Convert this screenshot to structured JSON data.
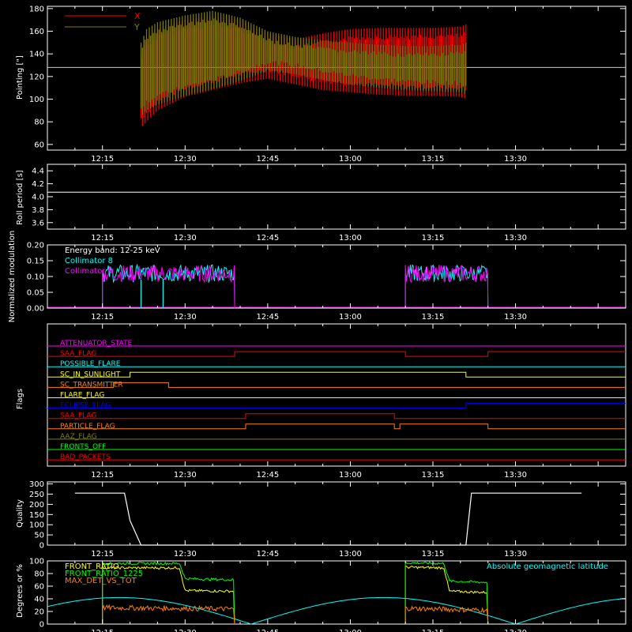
{
  "colors": {
    "background": "#000000",
    "axis": "#ffffff",
    "x_pointing": "#ff0000",
    "y_pointing": "#808000",
    "collimator_8": "#00ffff",
    "collimator_9": "#ff00ff",
    "front_ratio": "#ffff00",
    "front_ratio_1225": "#00ff00",
    "max_det_vs_tot": "#ff8000",
    "geomagnetic_latitude": "#00ffff"
  },
  "chart_data": [
    {
      "type": "line",
      "id": "pointing",
      "ylabel": "Pointing [\"]",
      "ylim": [
        55,
        182
      ],
      "yticks": [
        60,
        80,
        100,
        120,
        140,
        160,
        180
      ],
      "xticks": [
        "12:15",
        "12:30",
        "12:45",
        "13:00",
        "13:15",
        "13:30"
      ],
      "xlim_minutes": [
        725,
        830
      ],
      "reference_line": 128,
      "legend": [
        {
          "name": "X",
          "color": "#ff0000"
        },
        {
          "name": "Y",
          "color": "#808000"
        }
      ],
      "series": [
        {
          "name": "X",
          "color": "#ff0000",
          "x": [
            "12:22",
            "12:23",
            "12:25",
            "12:30",
            "12:35",
            "12:40",
            "12:45",
            "12:50",
            "12:55",
            "13:00",
            "13:05",
            "13:10",
            "13:15",
            "13:20",
            "13:21"
          ],
          "upper": [
            140,
            155,
            163,
            170,
            173,
            170,
            158,
            153,
            158,
            162,
            163,
            163,
            163,
            164,
            166
          ],
          "lower": [
            75,
            80,
            90,
            102,
            108,
            114,
            118,
            113,
            108,
            106,
            104,
            103,
            103,
            102,
            100
          ]
        },
        {
          "name": "Y",
          "color": "#808000",
          "x": [
            "12:22",
            "12:23",
            "12:25",
            "12:30",
            "12:35",
            "12:40",
            "12:45",
            "12:50",
            "12:55",
            "13:00",
            "13:05",
            "13:10",
            "13:15",
            "13:20",
            "13:21"
          ],
          "upper": [
            150,
            162,
            168,
            174,
            178,
            172,
            160,
            155,
            152,
            150,
            148,
            147,
            147,
            148,
            150
          ],
          "lower": [
            85,
            90,
            95,
            103,
            109,
            116,
            125,
            122,
            117,
            113,
            110,
            108,
            107,
            106,
            104
          ]
        }
      ]
    },
    {
      "type": "line",
      "id": "roll",
      "ylabel": "Roll period [s]",
      "ylim": [
        3.5,
        4.5
      ],
      "yticks": [
        "3.6",
        "3.8",
        "4.0",
        "4.2",
        "4.4"
      ],
      "xticks": [
        "12:15",
        "12:30",
        "12:45",
        "13:00",
        "13:15",
        "13:30"
      ],
      "series": [
        {
          "name": "Roll period",
          "color": "#ffffff",
          "value": 4.07
        }
      ]
    },
    {
      "type": "line",
      "id": "modulation",
      "ylabel": "Normalized modulation",
      "ylim": [
        0,
        0.2
      ],
      "yticks": [
        "0.00",
        "0.05",
        "0.10",
        "0.15",
        "0.20"
      ],
      "xticks": [
        "12:15",
        "12:30",
        "12:45",
        "13:00",
        "13:15",
        "13:30"
      ],
      "annotation": "Energy band: 12-25 keV",
      "legend": [
        {
          "name": "Collimator 8",
          "color": "#00ffff"
        },
        {
          "name": "Collimator 9",
          "color": "#ff00ff"
        }
      ],
      "segments": [
        {
          "start": "12:15",
          "end": "12:39",
          "mean": 0.11
        },
        {
          "start": "13:10",
          "end": "13:25",
          "mean": 0.11
        }
      ],
      "gaps": [
        "12:22",
        "12:26"
      ]
    },
    {
      "type": "line",
      "id": "flags",
      "ylabel": "Flags",
      "xticks": [
        "12:15",
        "12:30",
        "12:45",
        "13:00",
        "13:15",
        "13:30"
      ],
      "flags": [
        {
          "name": "ATTENUATOR_STATE",
          "color": "#ff00ff",
          "steps": []
        },
        {
          "name": "SAA_FLAG",
          "color": "#ff0000",
          "steps": [
            {
              "t": "12:39",
              "on": true
            },
            {
              "t": "13:10",
              "on": false
            },
            {
              "t": "13:25",
              "on": true
            }
          ]
        },
        {
          "name": "POSSIBLE_FLARE",
          "color": "#00ffff",
          "steps": []
        },
        {
          "name": "SC_IN_SUNLIGHT",
          "color": "#ffff00",
          "steps": [
            {
              "t": "12:20",
              "on": true
            },
            {
              "t": "13:21",
              "on": false
            }
          ]
        },
        {
          "name": "SC_TRANSMITTER",
          "color": "#ff8000",
          "steps": [
            {
              "t": "12:17",
              "on": true
            },
            {
              "t": "12:27",
              "on": false
            }
          ]
        },
        {
          "name": "FLARE_FLAG",
          "color": "#ffff00",
          "steps": []
        },
        {
          "name": "ECLIPSE_FLAG",
          "color": "#0000ff",
          "steps": [
            {
              "t": "12:20",
              "on": false
            },
            {
              "t": "13:21",
              "on": true
            }
          ]
        },
        {
          "name": "SAA_FLAG",
          "color": "#ff0000",
          "steps": [
            {
              "t": "12:41",
              "on": true
            },
            {
              "t": "13:08",
              "on": false
            }
          ]
        },
        {
          "name": "PARTICLE_FLAG",
          "color": "#ff8000",
          "steps": [
            {
              "t": "12:39",
              "on": false
            },
            {
              "t": "12:41",
              "on": true
            },
            {
              "t": "13:08",
              "on": false
            },
            {
              "t": "13:09",
              "on": true
            },
            {
              "t": "13:25",
              "on": false
            }
          ]
        },
        {
          "name": "AAZ_FLAG",
          "color": "#808000",
          "steps": []
        },
        {
          "name": "FRONTS_OFF",
          "color": "#00ff00",
          "steps": []
        },
        {
          "name": "BAD_PACKETS",
          "color": "#ff0000",
          "steps": []
        }
      ]
    },
    {
      "type": "line",
      "id": "quality",
      "ylabel": "Quality",
      "ylim": [
        0,
        310
      ],
      "yticks": [
        0,
        50,
        100,
        150,
        200,
        250,
        300
      ],
      "xticks": [
        "12:15",
        "12:30",
        "12:45",
        "13:00",
        "13:15",
        "13:30"
      ],
      "series": [
        {
          "name": "Quality",
          "color": "#ffffff",
          "x": [
            "12:10",
            "12:19",
            "12:20",
            "12:22",
            "13:21",
            "13:22",
            "13:42"
          ],
          "y": [
            255,
            255,
            120,
            0,
            0,
            255,
            255
          ]
        }
      ]
    },
    {
      "type": "line",
      "id": "ratios",
      "ylabel": "Degrees or %",
      "ylim": [
        0,
        100
      ],
      "yticks": [
        0,
        20,
        40,
        60,
        80,
        100
      ],
      "xticks": [
        "12:15",
        "12:30",
        "12:45",
        "13:00",
        "13:15",
        "13:30"
      ],
      "legend": [
        {
          "name": "FRONT_RATIO",
          "color": "#ffff00"
        },
        {
          "name": "FRONT_RATIO_1225",
          "color": "#00ff00"
        },
        {
          "name": "MAX_DET_VS_TOT",
          "color": "#ff8000"
        }
      ],
      "annotation": "Absolute geomagnetic latitude",
      "series": [
        {
          "name": "FRONT_RATIO",
          "color": "#ffff00",
          "x": [
            "12:15",
            "12:29",
            "12:30",
            "12:39",
            "13:10",
            "13:17",
            "13:18",
            "13:25"
          ],
          "y": [
            89,
            89,
            53,
            52,
            90,
            89,
            52,
            50
          ]
        },
        {
          "name": "FRONT_RATIO_1225",
          "color": "#00ff00",
          "x": [
            "12:15",
            "12:29",
            "12:30",
            "12:39",
            "13:10",
            "13:17",
            "13:18",
            "13:25"
          ],
          "y": [
            96,
            96,
            72,
            70,
            97,
            96,
            68,
            66
          ]
        },
        {
          "name": "MAX_DET_VS_TOT",
          "color": "#ff8000",
          "x": [
            "12:15",
            "12:39",
            "13:10",
            "13:25"
          ],
          "y": [
            26,
            24,
            25,
            22
          ]
        },
        {
          "name": "Absolute geomagnetic latitude",
          "color": "#00ffff",
          "period_minutes": 48,
          "amplitude": 42,
          "zeros": [
            "12:42",
            "13:30"
          ]
        }
      ]
    }
  ]
}
